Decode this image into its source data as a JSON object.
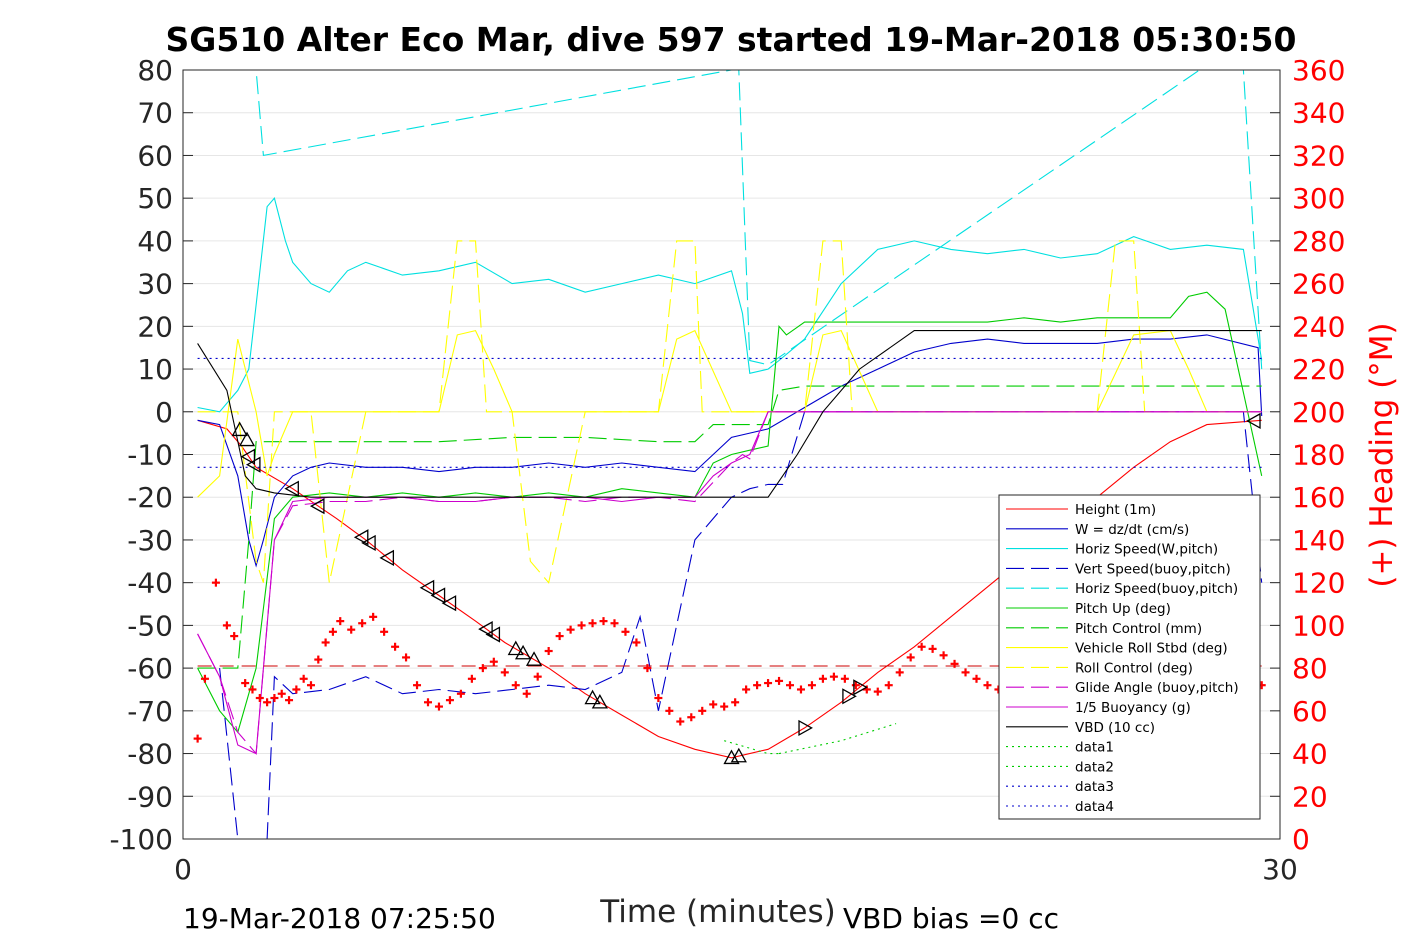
{
  "footer": {
    "end_time": "19-Mar-2018 07:25:50",
    "vbd_bias": "VBD bias =0 cc"
  },
  "chart_data": {
    "type": "line",
    "title": "SG510 Alter Eco Mar, dive 597 started 19-Mar-2018 05:30:50",
    "xlabel": "Time (minutes)",
    "ylabel": "",
    "ylabel_right": "(+) Heading (°M)",
    "xlim": [
      0,
      30
    ],
    "ylim": [
      -100,
      80
    ],
    "ylim_right": [
      0,
      360
    ],
    "xticks": [
      "0",
      "30"
    ],
    "yticks": [
      "80",
      "70",
      "60",
      "50",
      "40",
      "30",
      "20",
      "10",
      "0",
      "-10",
      "-20",
      "-30",
      "-40",
      "-50",
      "-60",
      "-70",
      "-80",
      "-90",
      "-100"
    ],
    "yticks_right": [
      "360",
      "340",
      "320",
      "300",
      "280",
      "260",
      "240",
      "220",
      "200",
      "180",
      "160",
      "140",
      "120",
      "100",
      "80",
      "60",
      "40",
      "20",
      "0"
    ],
    "grid": "horizontal",
    "legend_position": "lower-right",
    "series": [
      {
        "name": "Height (1m)",
        "color": "#ff0000",
        "style": "solid",
        "x": [
          0.4,
          1.2,
          1.6,
          2.0,
          3.0,
          4.2,
          5.0,
          6.0,
          7.0,
          8.0,
          8.8,
          10.0,
          11.0,
          12.0,
          13.0,
          14.0,
          15.0,
          16.0,
          17.0,
          18.0,
          19.0,
          20.0,
          21.0,
          22.0,
          23.0,
          24.0,
          25.0,
          26.0,
          27.0,
          28.0,
          29.5
        ],
        "y": [
          -2,
          -4,
          -8,
          -13,
          -18,
          -25,
          -30,
          -37,
          -43,
          -49,
          -54,
          -60,
          -66,
          -71,
          -76,
          -79,
          -81,
          -79,
          -74,
          -68,
          -61,
          -55,
          -48,
          -41,
          -34,
          -26,
          -20,
          -13,
          -7,
          -3,
          -2
        ]
      },
      {
        "name": "W = dz/dt (cm/s)",
        "color": "#0000cc",
        "style": "solid",
        "x": [
          0.4,
          1.0,
          1.5,
          1.8,
          2.0,
          2.2,
          2.5,
          3.0,
          3.5,
          4.0,
          5.0,
          6.0,
          7.0,
          8.0,
          9.0,
          10.0,
          11.0,
          12.0,
          13.0,
          14.0,
          14.5,
          15.0,
          15.5,
          16.0,
          17.0,
          18.0,
          19.0,
          20.0,
          21.0,
          22.0,
          23.0,
          24.0,
          25.0,
          26.0,
          27.0,
          28.0,
          29.4,
          29.5
        ],
        "y": [
          -2,
          -3,
          -15,
          -30,
          -36,
          -30,
          -20,
          -15,
          -13,
          -12,
          -13,
          -13,
          -14,
          -13,
          -13,
          -12,
          -13,
          -12,
          -13,
          -14,
          -10,
          -6,
          -5,
          -4,
          1,
          6,
          10,
          14,
          16,
          17,
          16,
          16,
          16,
          17,
          17,
          18,
          15,
          -1
        ]
      },
      {
        "name": "Horiz Speed(W,pitch)",
        "color": "#00e0e0",
        "style": "solid",
        "x": [
          0.4,
          1.0,
          1.5,
          1.8,
          2.0,
          2.3,
          2.5,
          2.8,
          3.0,
          3.5,
          4.0,
          4.5,
          5.0,
          6.0,
          7.0,
          8.0,
          9.0,
          10.0,
          11.0,
          12.0,
          13.0,
          14.0,
          15.0,
          15.3,
          15.5,
          16.0,
          16.3,
          17.0,
          18.0,
          19.0,
          20.0,
          21.0,
          22.0,
          23.0,
          24.0,
          25.0,
          26.0,
          27.0,
          28.0,
          29.0,
          29.5
        ],
        "y": [
          1,
          0,
          5,
          10,
          25,
          48,
          50,
          40,
          35,
          30,
          28,
          33,
          35,
          32,
          33,
          35,
          30,
          31,
          28,
          30,
          32,
          30,
          33,
          23,
          9,
          10,
          12,
          17,
          30,
          38,
          40,
          38,
          37,
          38,
          36,
          37,
          41,
          38,
          39,
          38,
          12
        ]
      },
      {
        "name": "Vert Speed(buoy,pitch)",
        "color": "#0000cc",
        "style": "dashed",
        "x": [
          1.0,
          1.5,
          2.0,
          2.3,
          2.5,
          3.0,
          4.0,
          5.0,
          6.0,
          7.0,
          8.0,
          9.0,
          10.0,
          11.0,
          12.0,
          12.5,
          13.0,
          14.0,
          15.0,
          15.5,
          16.0,
          16.4,
          17.0,
          18.0,
          19.0,
          20.0,
          21.0,
          22.0,
          23.0,
          24.0,
          25.0,
          26.0,
          27.0,
          28.0,
          29.0,
          29.5
        ],
        "y": [
          -60,
          -100,
          -100,
          -100,
          -62,
          -66,
          -65,
          -62,
          -66,
          -65,
          -66,
          -65,
          -64,
          -65,
          -61,
          -48,
          -70,
          -30,
          -20,
          -18,
          -17,
          -17,
          0,
          0,
          0,
          0,
          0,
          0,
          0,
          0,
          0,
          0,
          0,
          0,
          0,
          -40
        ]
      },
      {
        "name": "Horiz Speed(buoy,pitch)",
        "color": "#00e0e0",
        "style": "dashed",
        "x": [
          0.8,
          1.5,
          2.0,
          2.2,
          15.0,
          15.2,
          15.5,
          16.0,
          27.8,
          28.0,
          28.5,
          29.0,
          29.5
        ],
        "y": [
          80,
          80,
          80,
          60,
          80,
          80,
          12,
          11,
          80,
          80,
          80,
          80,
          10
        ]
      },
      {
        "name": "Pitch Up (deg)",
        "color": "#00cc00",
        "style": "solid",
        "x": [
          0.4,
          1.0,
          1.5,
          2.0,
          2.5,
          3.0,
          4.0,
          5.0,
          6.0,
          7.0,
          8.0,
          9.0,
          10.0,
          11.0,
          12.0,
          13.0,
          14.0,
          14.5,
          15.0,
          15.5,
          16.0,
          16.3,
          16.5,
          17.0,
          18.0,
          19.0,
          20.0,
          21.0,
          22.0,
          23.0,
          24.0,
          25.0,
          26.0,
          27.0,
          27.5,
          28.0,
          28.5,
          29.5
        ],
        "y": [
          -60,
          -70,
          -75,
          -60,
          -25,
          -20,
          -19,
          -20,
          -19,
          -20,
          -19,
          -20,
          -19,
          -20,
          -18,
          -19,
          -20,
          -12,
          -10,
          -9,
          -8,
          20,
          18,
          21,
          21,
          21,
          21,
          21,
          21,
          22,
          21,
          22,
          22,
          22,
          27,
          28,
          24,
          -15
        ]
      },
      {
        "name": "Pitch Control (mm)",
        "color": "#00cc00",
        "style": "dashed",
        "x": [
          0.4,
          1.0,
          1.5,
          1.8,
          2.0,
          2.5,
          3.0,
          5.0,
          7.0,
          9.0,
          11.0,
          13.0,
          14.0,
          14.5,
          15.0,
          16.0,
          16.3,
          17.0,
          19.0,
          21.0,
          23.0,
          25.0,
          27.0,
          29.0,
          29.5
        ],
        "y": [
          -60,
          -60,
          -60,
          -30,
          -7,
          -7,
          -7,
          -7,
          -7,
          -6,
          -6,
          -7,
          -7,
          -3,
          -3,
          -3,
          5,
          6,
          6,
          6,
          6,
          6,
          6,
          6,
          6
        ]
      },
      {
        "name": "Vehicle Roll Stbd (deg)",
        "color": "#ffff00",
        "style": "solid",
        "x": [
          0.4,
          1.0,
          1.5,
          2.0,
          2.3,
          2.5,
          3.0,
          4.0,
          5.0,
          6.0,
          7.0,
          7.5,
          8.0,
          8.5,
          9.0,
          10.0,
          11.0,
          12.0,
          13.0,
          13.5,
          14.0,
          15.0,
          16.0,
          16.5,
          17.0,
          17.5,
          18.0,
          19.0,
          20.0,
          21.0,
          22.0,
          23.0,
          24.0,
          25.0,
          26.0,
          27.0,
          27.5,
          28.0,
          29.0,
          29.5
        ],
        "y": [
          -20,
          -15,
          17,
          0,
          -15,
          -10,
          0,
          0,
          0,
          0,
          0,
          18,
          19,
          10,
          0,
          0,
          0,
          0,
          0,
          17,
          19,
          0,
          0,
          0,
          0,
          18,
          19,
          0,
          0,
          0,
          0,
          0,
          0,
          0,
          18,
          19,
          10,
          0,
          0,
          0
        ]
      },
      {
        "name": "Roll Control (deg)",
        "color": "#ffff00",
        "style": "dashed",
        "x": [
          0.4,
          1.0,
          1.5,
          2.0,
          2.2,
          2.5,
          3.0,
          3.5,
          4.0,
          5.0,
          6.0,
          7.0,
          7.5,
          8.0,
          8.3,
          8.5,
          9.0,
          9.5,
          10.0,
          11.0,
          12.0,
          13.0,
          13.5,
          14.0,
          14.2,
          14.5,
          15.0,
          16.0,
          16.5,
          17.0,
          17.5,
          18.0,
          18.3,
          18.5,
          19.0,
          20.0,
          21.0,
          22.0,
          23.0,
          24.0,
          25.0,
          25.5,
          26.0,
          26.3,
          26.5,
          27.0,
          28.0,
          29.5
        ],
        "y": [
          0,
          0,
          0,
          -35,
          -40,
          0,
          0,
          0,
          -40,
          0,
          0,
          0,
          40,
          40,
          0,
          0,
          0,
          -35,
          -40,
          0,
          0,
          0,
          40,
          40,
          0,
          0,
          0,
          0,
          0,
          0,
          40,
          40,
          0,
          0,
          0,
          0,
          0,
          0,
          0,
          0,
          0,
          40,
          40,
          0,
          0,
          0,
          0,
          0
        ]
      },
      {
        "name": "Glide Angle (buoy,pitch)",
        "color": "#cc00cc",
        "style": "dashed",
        "x": [
          0.4,
          1.0,
          1.5,
          2.0,
          2.5,
          3.0,
          4.0,
          5.0,
          6.0,
          7.0,
          8.0,
          9.0,
          10.0,
          11.0,
          12.0,
          13.0,
          14.0,
          15.0,
          15.3,
          15.5,
          16.0,
          17.0,
          18.0,
          20.0,
          22.0,
          24.0,
          26.0,
          28.0,
          29.5
        ],
        "y": [
          -52,
          -62,
          -75,
          -80,
          -30,
          -22,
          -21,
          -21,
          -20,
          -21,
          -21,
          -20,
          -20,
          -21,
          -20,
          -20,
          -21,
          -12,
          -10,
          -11,
          0,
          0,
          0,
          0,
          0,
          0,
          0,
          0,
          0
        ]
      },
      {
        "name": "1/5 Buoyancy (g)",
        "color": "#cc00cc",
        "style": "solid",
        "x": [
          0.4,
          1.0,
          1.5,
          2.0,
          2.5,
          3.0,
          4.0,
          5.0,
          6.0,
          7.0,
          8.0,
          9.0,
          10.0,
          11.0,
          12.0,
          13.0,
          14.0,
          14.5,
          15.0,
          15.5,
          16.0,
          17.0,
          18.0,
          20.0,
          22.0,
          24.0,
          26.0,
          28.0,
          29.5
        ],
        "y": [
          -52,
          -62,
          -78,
          -80,
          -30,
          -21,
          -20,
          -20,
          -20,
          -21,
          -21,
          -20,
          -20,
          -20,
          -21,
          -20,
          -20,
          -15,
          -12,
          -10,
          0,
          0,
          0,
          0,
          0,
          0,
          0,
          0,
          0
        ]
      },
      {
        "name": "VBD (10 cc)",
        "color": "#000000",
        "style": "solid",
        "x": [
          0.4,
          1.2,
          1.7,
          2.0,
          2.5,
          3.5,
          5.0,
          8.0,
          11.0,
          14.0,
          15.5,
          16.0,
          16.8,
          17.5,
          18.5,
          20.0,
          22.0,
          25.0,
          27.0,
          29.5
        ],
        "y": [
          16,
          5,
          -15,
          -18,
          -19,
          -20,
          -20,
          -20,
          -20,
          -20,
          -20,
          -20,
          -10,
          0,
          10,
          19,
          19,
          19,
          19,
          19
        ]
      },
      {
        "name": "data1",
        "color": "#00cc00",
        "style": "dotted",
        "x": [
          14.8,
          16.0,
          16.3
        ],
        "y": [
          -77,
          -80,
          -80
        ]
      },
      {
        "name": "data2",
        "color": "#00cc00",
        "style": "dotted",
        "x": [
          16.3,
          18.0,
          19.5
        ],
        "y": [
          -80,
          -77,
          -73
        ]
      },
      {
        "name": "data3",
        "color": "#0000cc",
        "style": "dotted",
        "x": [
          0.4,
          29.5
        ],
        "y": [
          12.5,
          12.5
        ]
      },
      {
        "name": "data4",
        "color": "#0000cc",
        "style": "dotted",
        "x": [
          0.4,
          29.5
        ],
        "y": [
          -13,
          -13
        ]
      }
    ],
    "heading_series": {
      "color": "#ff0000",
      "marker": "plus",
      "axis": "right",
      "x": [
        0.4,
        0.6,
        0.9,
        1.2,
        1.4,
        1.7,
        1.9,
        2.1,
        2.3,
        2.5,
        2.7,
        2.9,
        3.1,
        3.3,
        3.5,
        3.7,
        3.9,
        4.1,
        4.3,
        4.6,
        4.9,
        5.2,
        5.5,
        5.8,
        6.1,
        6.4,
        6.7,
        7.0,
        7.3,
        7.6,
        7.9,
        8.2,
        8.5,
        8.8,
        9.1,
        9.4,
        9.7,
        10.0,
        10.3,
        10.6,
        10.9,
        11.2,
        11.5,
        11.8,
        12.1,
        12.4,
        12.7,
        13.0,
        13.3,
        13.6,
        13.9,
        14.2,
        14.5,
        14.8,
        15.1,
        15.4,
        15.7,
        16.0,
        16.3,
        16.6,
        16.9,
        17.2,
        17.5,
        17.8,
        18.1,
        18.4,
        18.7,
        19.0,
        19.3,
        19.6,
        19.9,
        20.2,
        20.5,
        20.8,
        21.1,
        21.4,
        21.7,
        22.0,
        22.3,
        22.6,
        22.9,
        23.2,
        23.5,
        23.8,
        24.1,
        24.4,
        24.7,
        25.0,
        25.3,
        25.6,
        25.9,
        26.2,
        26.5,
        26.8,
        27.1,
        27.4,
        27.7,
        28.0,
        28.3,
        28.6,
        28.9,
        29.2,
        29.5
      ],
      "y": [
        47,
        75,
        120,
        100,
        95,
        73,
        70,
        66,
        64,
        66,
        68,
        65,
        70,
        75,
        72,
        84,
        92,
        97,
        102,
        98,
        101,
        104,
        97,
        90,
        85,
        72,
        64,
        62,
        65,
        68,
        75,
        80,
        83,
        78,
        72,
        68,
        76,
        88,
        95,
        98,
        100,
        101,
        102,
        101,
        97,
        92,
        80,
        66,
        60,
        55,
        57,
        60,
        63,
        62,
        64,
        70,
        72,
        73,
        74,
        72,
        70,
        72,
        75,
        76,
        75,
        72,
        70,
        69,
        72,
        78,
        85,
        90,
        89,
        86,
        82,
        78,
        75,
        72,
        70,
        68,
        63,
        60,
        63,
        66,
        70,
        75,
        84,
        92,
        98,
        100,
        96,
        92,
        86,
        80,
        78,
        76,
        73,
        70,
        75,
        82,
        78,
        74,
        72
      ]
    }
  }
}
